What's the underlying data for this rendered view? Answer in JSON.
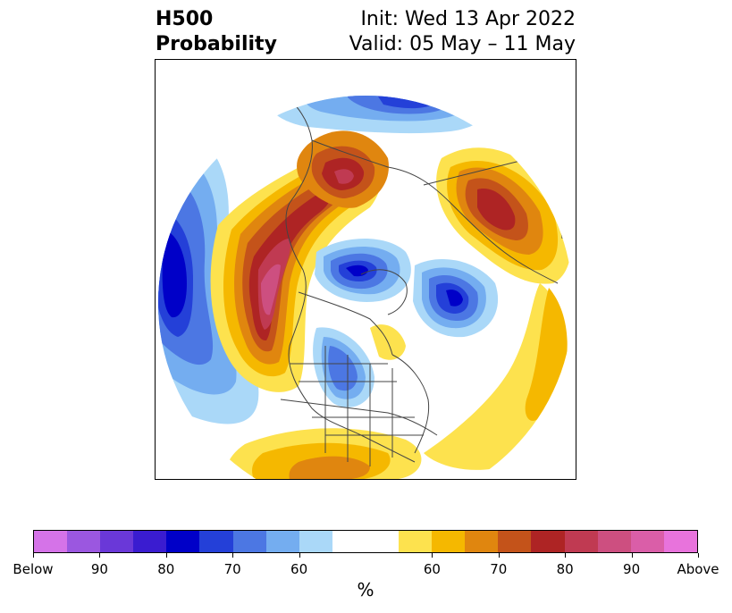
{
  "header": {
    "title_line1": "H500",
    "title_line2": "Probability",
    "init_text": "Init: Wed 13 Apr 2022",
    "valid_text": "Valid: 05 May – 11 May"
  },
  "colorbar": {
    "segments": [
      {
        "color": "#d573e8"
      },
      {
        "color": "#9b57e0"
      },
      {
        "color": "#6a38d8"
      },
      {
        "color": "#3a1cd0"
      },
      {
        "color": "#0000c8"
      },
      {
        "color": "#2440d8"
      },
      {
        "color": "#4c77e3"
      },
      {
        "color": "#74adf0"
      },
      {
        "color": "#aad8f8"
      },
      {
        "color": "#ffffff"
      },
      {
        "color": "#ffffff"
      },
      {
        "color": "#fde24e"
      },
      {
        "color": "#f5b800"
      },
      {
        "color": "#e0860f"
      },
      {
        "color": "#c4531a"
      },
      {
        "color": "#ae2424"
      },
      {
        "color": "#c03a52"
      },
      {
        "color": "#cd4f80"
      },
      {
        "color": "#da5ea8"
      },
      {
        "color": "#e873dc"
      }
    ],
    "ticks": [
      "Below",
      "90",
      "80",
      "70",
      "60",
      "60",
      "70",
      "80",
      "90",
      "Above"
    ],
    "units": "%"
  },
  "map": {
    "background": "#ffffff",
    "coastline_color": "#444444",
    "below_colors": [
      "#aad8f8",
      "#74adf0",
      "#4c77e3",
      "#2440d8",
      "#0000c8"
    ],
    "above_colors": [
      "#fde24e",
      "#f5b800",
      "#e0860f",
      "#c4531a",
      "#ae2424",
      "#c03a52",
      "#cd4f80"
    ]
  }
}
